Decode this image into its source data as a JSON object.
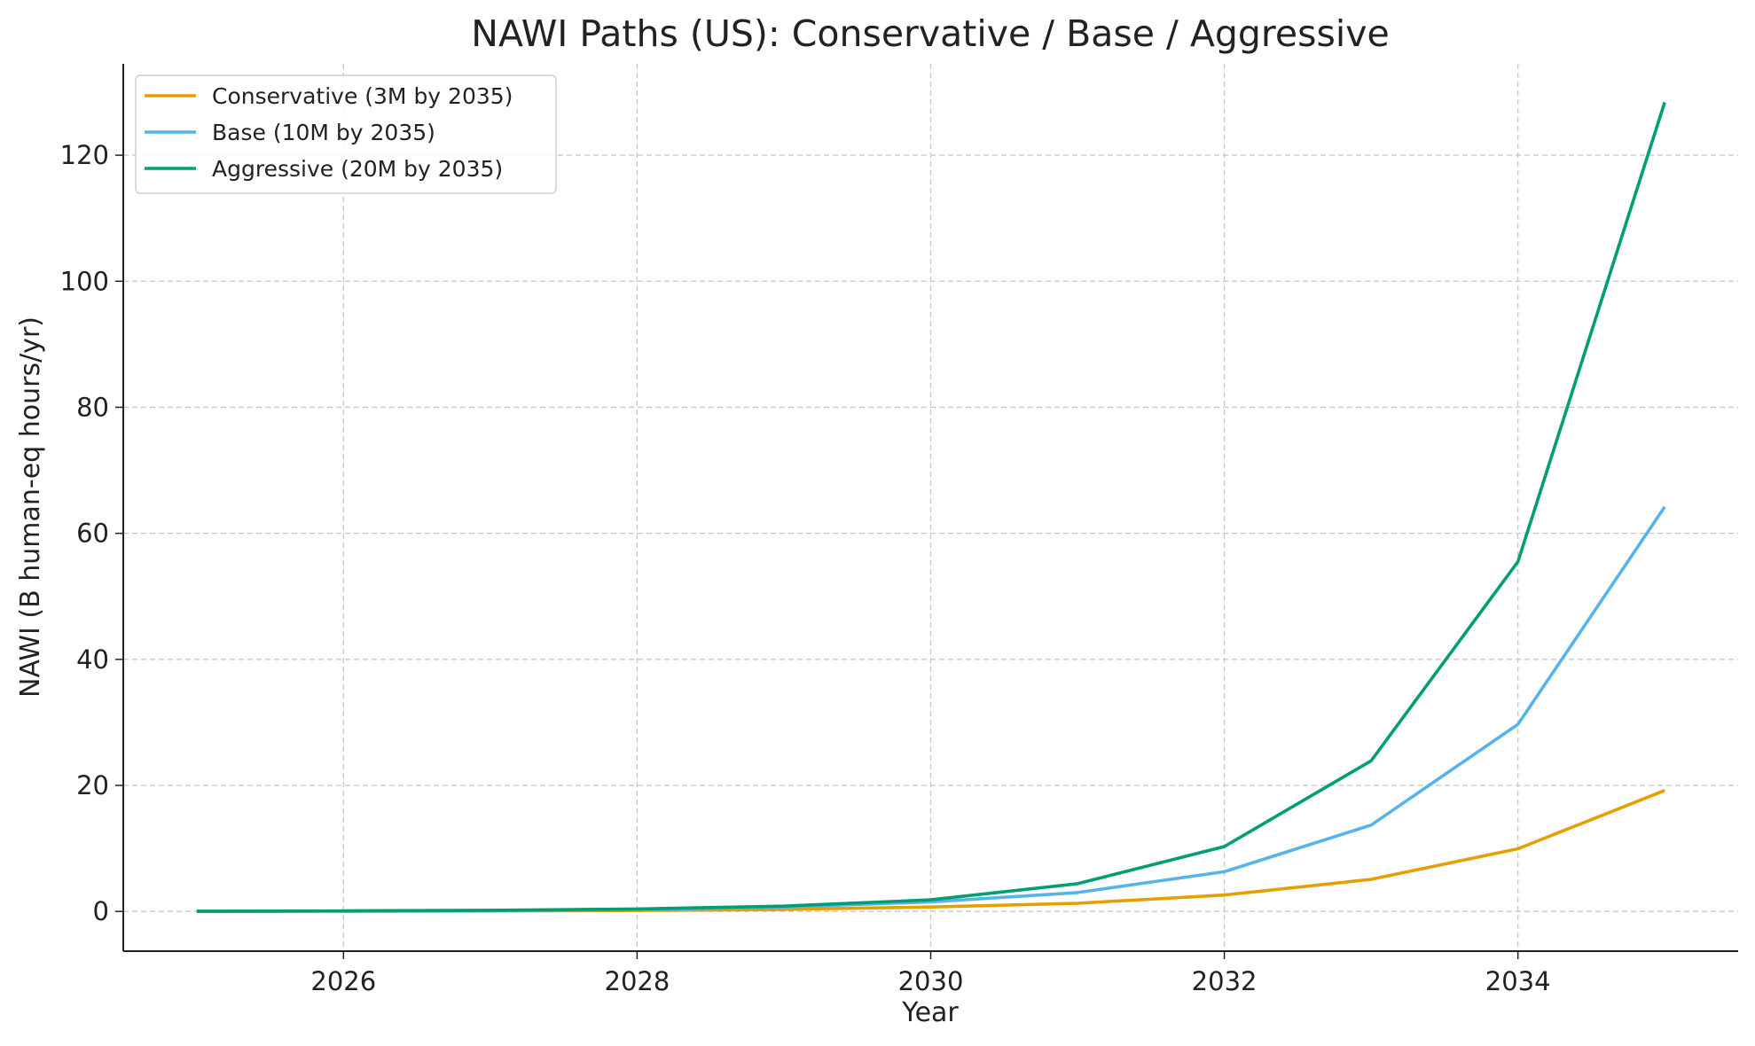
{
  "chart_data": {
    "type": "line",
    "title": "NAWI Paths (US): Conservative / Base / Aggressive",
    "xlabel": "Year",
    "ylabel": "NAWI (B human-eq hours/yr)",
    "x": [
      2025,
      2026,
      2027,
      2028,
      2029,
      2030,
      2031,
      2032,
      2033,
      2034,
      2035
    ],
    "xlim": [
      2024.5,
      2035.5
    ],
    "ylim": [
      -6.3,
      134.5
    ],
    "xticks": [
      2026,
      2028,
      2030,
      2032,
      2034
    ],
    "yticks": [
      0,
      20,
      40,
      60,
      80,
      100,
      120
    ],
    "grid": true,
    "legend_placement": "top-left",
    "series": [
      {
        "name": "Conservative (3M by 2035)",
        "color": "#E69F00",
        "values": [
          0.01,
          0.03,
          0.07,
          0.15,
          0.33,
          0.7,
          1.3,
          2.6,
          5.1,
          9.95,
          19.2
        ]
      },
      {
        "name": "Base (10M by 2035)",
        "color": "#56B4E9",
        "values": [
          0.02,
          0.06,
          0.14,
          0.3,
          0.7,
          1.5,
          3.0,
          6.3,
          13.7,
          29.7,
          64.2
        ]
      },
      {
        "name": "Aggressive (20M by 2035)",
        "color": "#009E73",
        "values": [
          0.03,
          0.08,
          0.18,
          0.4,
          0.85,
          1.85,
          4.4,
          10.3,
          23.9,
          55.5,
          128.4
        ]
      }
    ]
  }
}
